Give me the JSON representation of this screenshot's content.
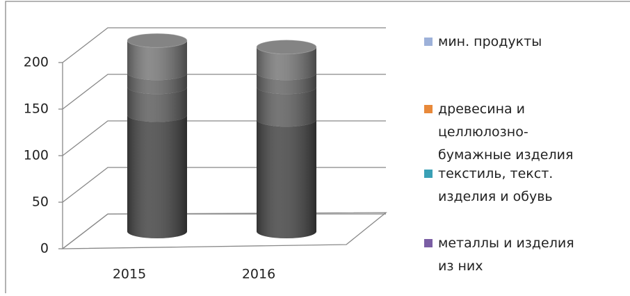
{
  "chart_data": {
    "type": "cylinder3d-stacked",
    "categories": [
      "2015",
      "2016"
    ],
    "series": [
      {
        "name": "металлы и изделия\nиз них",
        "color": "#7a5ea4",
        "values": [
          125,
          120
        ]
      },
      {
        "name": "текстиль, текст.\nизделия и обувь",
        "color": "#3aa0b5",
        "values": [
          30,
          35
        ]
      },
      {
        "name": "древесина и\nцеллюлозно-\nбумажные изделия",
        "color": "#e8893a",
        "values": [
          15,
          15
        ]
      },
      {
        "name": "мин. продукты",
        "color": "#9db1d9",
        "values": [
          35,
          28
        ]
      }
    ],
    "ylim": [
      0,
      200
    ],
    "yticks": [
      0,
      50,
      100,
      150,
      200
    ],
    "grid": true
  }
}
